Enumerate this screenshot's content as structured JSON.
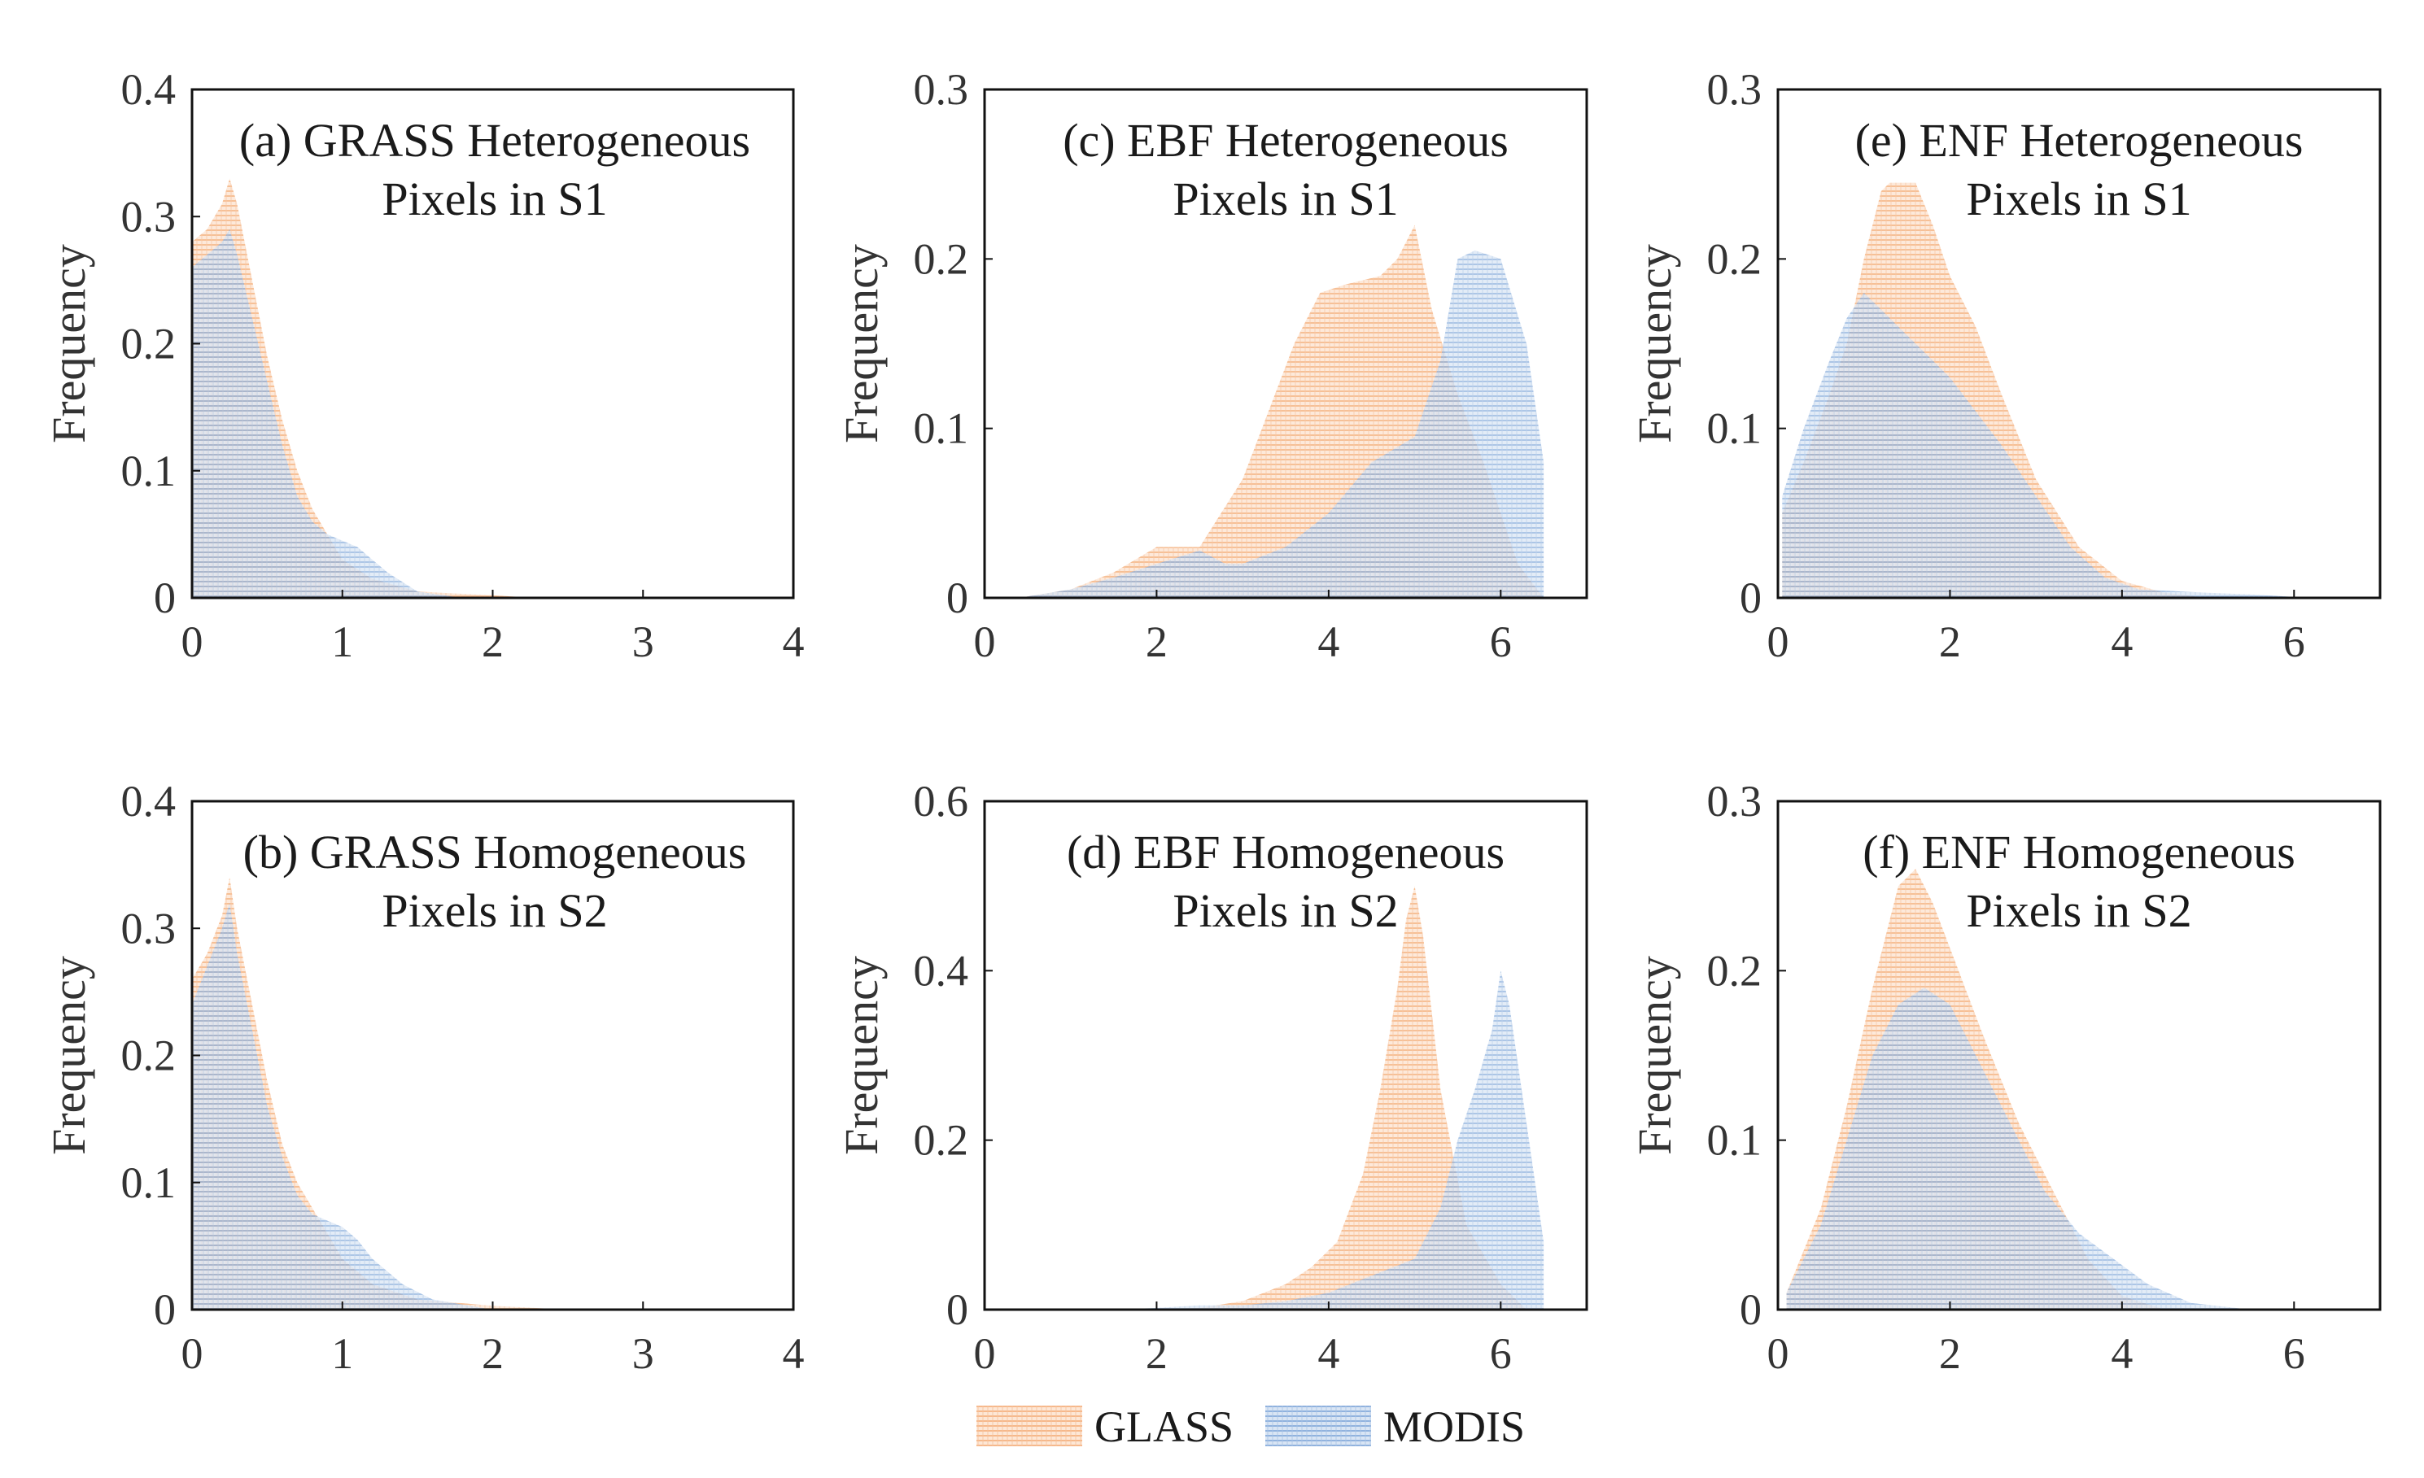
{
  "chart_data": [
    {
      "type": "area",
      "title": [
        "(a) GRASS Heterogeneous",
        "Pixels in S1"
      ],
      "ylabel": "Frequency",
      "xlim": [
        0,
        4
      ],
      "ylim": [
        0,
        0.4
      ],
      "xticks": [
        0,
        1,
        2,
        3,
        4
      ],
      "yticks": [
        0,
        0.1,
        0.2,
        0.3,
        0.4
      ],
      "xtick_labels": [
        "0",
        "1",
        "2",
        "3",
        "4"
      ],
      "ytick_labels": [
        "0",
        "0.1",
        "0.2",
        "0.3",
        "0.4"
      ],
      "series": [
        {
          "name": "GLASS",
          "x": [
            0,
            0.1,
            0.2,
            0.25,
            0.3,
            0.4,
            0.5,
            0.6,
            0.7,
            0.8,
            0.9,
            1.0,
            1.2,
            1.5,
            2.0,
            2.3
          ],
          "values": [
            0.28,
            0.29,
            0.31,
            0.33,
            0.31,
            0.25,
            0.19,
            0.14,
            0.1,
            0.07,
            0.05,
            0.03,
            0.015,
            0.005,
            0.002,
            0
          ]
        },
        {
          "name": "MODIS",
          "x": [
            0,
            0.1,
            0.2,
            0.25,
            0.3,
            0.4,
            0.5,
            0.6,
            0.7,
            0.8,
            0.9,
            1.0,
            1.1,
            1.2,
            1.3,
            1.5,
            1.8
          ],
          "values": [
            0.26,
            0.27,
            0.28,
            0.29,
            0.27,
            0.22,
            0.17,
            0.12,
            0.08,
            0.06,
            0.05,
            0.045,
            0.04,
            0.03,
            0.02,
            0.005,
            0
          ]
        }
      ]
    },
    {
      "type": "area",
      "title": [
        "(b) GRASS Homogeneous",
        "Pixels in S2"
      ],
      "ylabel": "Frequency",
      "xlim": [
        0,
        4
      ],
      "ylim": [
        0,
        0.4
      ],
      "xticks": [
        0,
        1,
        2,
        3,
        4
      ],
      "yticks": [
        0,
        0.1,
        0.2,
        0.3,
        0.4
      ],
      "xtick_labels": [
        "0",
        "1",
        "2",
        "3",
        "4"
      ],
      "ytick_labels": [
        "0",
        "0.1",
        "0.2",
        "0.3",
        "0.4"
      ],
      "series": [
        {
          "name": "GLASS",
          "x": [
            0,
            0.1,
            0.2,
            0.25,
            0.3,
            0.4,
            0.5,
            0.6,
            0.7,
            0.8,
            0.9,
            1.0,
            1.2,
            1.5,
            2.0,
            2.5
          ],
          "values": [
            0.26,
            0.28,
            0.31,
            0.34,
            0.3,
            0.24,
            0.18,
            0.13,
            0.1,
            0.08,
            0.06,
            0.04,
            0.02,
            0.008,
            0.003,
            0
          ]
        },
        {
          "name": "MODIS",
          "x": [
            0,
            0.1,
            0.2,
            0.25,
            0.3,
            0.4,
            0.5,
            0.6,
            0.7,
            0.8,
            0.9,
            1.0,
            1.1,
            1.2,
            1.4,
            1.6,
            2.0
          ],
          "values": [
            0.24,
            0.27,
            0.3,
            0.32,
            0.28,
            0.22,
            0.16,
            0.12,
            0.09,
            0.075,
            0.07,
            0.065,
            0.055,
            0.04,
            0.02,
            0.008,
            0
          ]
        }
      ]
    },
    {
      "type": "area",
      "title": [
        "(c) EBF Heterogeneous",
        "Pixels in S1"
      ],
      "ylabel": "Frequency",
      "xlim": [
        0,
        7
      ],
      "ylim": [
        0,
        0.3
      ],
      "xticks": [
        0,
        2,
        4,
        6
      ],
      "yticks": [
        0,
        0.1,
        0.2,
        0.3
      ],
      "xtick_labels": [
        "0",
        "2",
        "4",
        "6"
      ],
      "ytick_labels": [
        "0",
        "0.1",
        "0.2",
        "0.3"
      ],
      "series": [
        {
          "name": "GLASS",
          "x": [
            0.4,
            1.0,
            1.5,
            2.0,
            2.5,
            3.0,
            3.3,
            3.6,
            3.9,
            4.2,
            4.6,
            4.8,
            5.0,
            5.2,
            5.5,
            5.8,
            6.2,
            6.5
          ],
          "values": [
            0,
            0.005,
            0.015,
            0.03,
            0.03,
            0.07,
            0.11,
            0.15,
            0.18,
            0.185,
            0.19,
            0.2,
            0.22,
            0.17,
            0.12,
            0.08,
            0.02,
            0
          ]
        },
        {
          "name": "MODIS",
          "x": [
            0.4,
            1.0,
            1.5,
            2.0,
            2.5,
            2.8,
            3.0,
            3.5,
            4.0,
            4.5,
            5.0,
            5.3,
            5.5,
            5.7,
            6.0,
            6.3,
            6.5
          ],
          "values": [
            0,
            0.005,
            0.012,
            0.02,
            0.028,
            0.02,
            0.02,
            0.03,
            0.05,
            0.08,
            0.095,
            0.14,
            0.2,
            0.205,
            0.2,
            0.15,
            0.08
          ]
        }
      ]
    },
    {
      "type": "area",
      "title": [
        "(d) EBF Homogeneous",
        "Pixels in S2"
      ],
      "ylabel": "Frequency",
      "xlim": [
        0,
        7
      ],
      "ylim": [
        0,
        0.6
      ],
      "xticks": [
        0,
        2,
        4,
        6
      ],
      "yticks": [
        0,
        0.2,
        0.4,
        0.6
      ],
      "xtick_labels": [
        "0",
        "2",
        "4",
        "6"
      ],
      "ytick_labels": [
        "0",
        "0.2",
        "0.4",
        "0.6"
      ],
      "series": [
        {
          "name": "GLASS",
          "x": [
            1.5,
            2.5,
            3.0,
            3.5,
            3.8,
            4.1,
            4.4,
            4.6,
            4.8,
            4.9,
            5.0,
            5.1,
            5.3,
            5.6,
            6.0,
            6.3
          ],
          "values": [
            0,
            0.002,
            0.01,
            0.03,
            0.05,
            0.08,
            0.16,
            0.26,
            0.38,
            0.46,
            0.5,
            0.44,
            0.26,
            0.1,
            0.03,
            0
          ]
        },
        {
          "name": "MODIS",
          "x": [
            1.5,
            2.0,
            2.5,
            3.0,
            3.5,
            4.0,
            4.5,
            5.0,
            5.3,
            5.5,
            5.7,
            5.9,
            6.0,
            6.1,
            6.3,
            6.5
          ],
          "values": [
            0,
            0.002,
            0.005,
            0.005,
            0.01,
            0.02,
            0.04,
            0.06,
            0.12,
            0.2,
            0.26,
            0.33,
            0.4,
            0.36,
            0.22,
            0.08
          ]
        }
      ]
    },
    {
      "type": "area",
      "title": [
        "(e) ENF Heterogeneous",
        "Pixels in S1"
      ],
      "ylabel": "Frequency",
      "xlim": [
        0,
        7
      ],
      "ylim": [
        0,
        0.3
      ],
      "xticks": [
        0,
        2,
        4,
        6
      ],
      "yticks": [
        0,
        0.1,
        0.2,
        0.3
      ],
      "xtick_labels": [
        "0",
        "2",
        "4",
        "6"
      ],
      "ytick_labels": [
        "0",
        "0.1",
        "0.2",
        "0.3"
      ],
      "series": [
        {
          "name": "GLASS",
          "x": [
            0.05,
            0.3,
            0.6,
            0.8,
            1.0,
            1.2,
            1.3,
            1.6,
            1.8,
            2.0,
            2.3,
            2.6,
            3.0,
            3.5,
            4.0,
            4.5,
            5.0
          ],
          "values": [
            0.05,
            0.08,
            0.12,
            0.15,
            0.2,
            0.24,
            0.245,
            0.245,
            0.22,
            0.19,
            0.16,
            0.12,
            0.07,
            0.03,
            0.01,
            0.003,
            0
          ]
        },
        {
          "name": "MODIS",
          "x": [
            0.05,
            0.3,
            0.6,
            0.8,
            1.0,
            1.2,
            1.5,
            1.8,
            2.0,
            2.3,
            2.6,
            3.0,
            3.4,
            3.8,
            4.2,
            5.0,
            5.5,
            6.2
          ],
          "values": [
            0.06,
            0.1,
            0.14,
            0.165,
            0.18,
            0.17,
            0.155,
            0.14,
            0.13,
            0.11,
            0.09,
            0.06,
            0.03,
            0.012,
            0.005,
            0.003,
            0.002,
            0
          ]
        }
      ]
    },
    {
      "type": "area",
      "title": [
        "(f) ENF Homogeneous",
        "Pixels in S2"
      ],
      "ylabel": "Frequency",
      "xlim": [
        0,
        7
      ],
      "ylim": [
        0,
        0.3
      ],
      "xticks": [
        0,
        2,
        4,
        6
      ],
      "yticks": [
        0,
        0.1,
        0.2,
        0.3
      ],
      "xtick_labels": [
        "0",
        "2",
        "4",
        "6"
      ],
      "ytick_labels": [
        "0",
        "0.1",
        "0.2",
        "0.3"
      ],
      "series": [
        {
          "name": "GLASS",
          "x": [
            0.1,
            0.5,
            0.8,
            1.1,
            1.4,
            1.6,
            1.8,
            2.1,
            2.4,
            2.8,
            3.2,
            3.6,
            4.0,
            4.5
          ],
          "values": [
            0.01,
            0.06,
            0.12,
            0.19,
            0.25,
            0.26,
            0.24,
            0.2,
            0.16,
            0.11,
            0.07,
            0.03,
            0.008,
            0
          ]
        },
        {
          "name": "MODIS",
          "x": [
            0.1,
            0.5,
            0.8,
            1.1,
            1.4,
            1.7,
            2.0,
            2.3,
            2.7,
            3.1,
            3.5,
            3.9,
            4.3,
            4.8,
            5.5
          ],
          "values": [
            0.01,
            0.05,
            0.1,
            0.15,
            0.18,
            0.19,
            0.18,
            0.15,
            0.11,
            0.07,
            0.045,
            0.03,
            0.015,
            0.004,
            0
          ]
        }
      ]
    }
  ],
  "legend": {
    "items": [
      {
        "label": "GLASS",
        "color": "#f7b98a"
      },
      {
        "label": "MODIS",
        "color": "#8fb3de"
      }
    ]
  },
  "colors": {
    "glass": "#f7b98a",
    "modis": "#8fb3de",
    "axis": "#111111",
    "text": "#333333"
  }
}
